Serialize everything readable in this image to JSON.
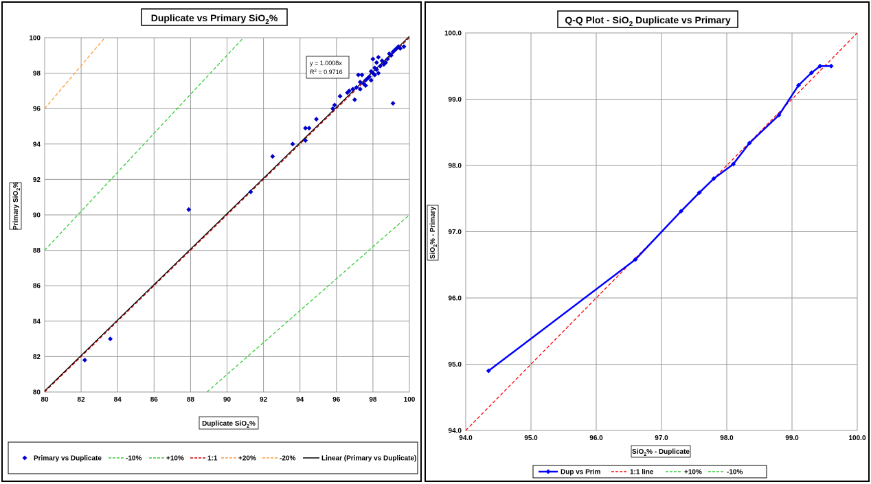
{
  "chart_data": [
    {
      "type": "scatter",
      "title": "Duplicate vs Primary SiO",
      "title_sub": "2",
      "title_suffix": "%",
      "xlabel": "Duplicate SiO",
      "xlabel_sub": "2",
      "xlabel_suffix": "%",
      "ylabel": "Primary SiO",
      "ylabel_sub": "2",
      "ylabel_suffix": "%",
      "xlim": [
        80,
        100
      ],
      "ylim": [
        80,
        100
      ],
      "xticks": [
        "80",
        "82",
        "84",
        "86",
        "88",
        "90",
        "92",
        "94",
        "96",
        "98",
        "100"
      ],
      "yticks": [
        "80",
        "82",
        "84",
        "86",
        "88",
        "90",
        "92",
        "94",
        "96",
        "98",
        "100"
      ],
      "grid": true,
      "trendline_label": "y = 1.0008x",
      "r2_label": "R",
      "r2_sup": "2",
      "r2_value": " = 0.9716",
      "series": [
        {
          "name": "Primary vs Duplicate",
          "color": "#0000cc",
          "marker": "diamond",
          "points": [
            [
              82.2,
              81.8
            ],
            [
              83.6,
              83.0
            ],
            [
              87.9,
              90.3
            ],
            [
              91.3,
              91.3
            ],
            [
              92.5,
              93.3
            ],
            [
              93.6,
              94.0
            ],
            [
              94.3,
              94.2
            ],
            [
              94.3,
              94.9
            ],
            [
              94.5,
              94.9
            ],
            [
              94.9,
              95.4
            ],
            [
              95.8,
              96.0
            ],
            [
              95.9,
              96.2
            ],
            [
              96.2,
              96.7
            ],
            [
              96.6,
              96.9
            ],
            [
              96.7,
              97.0
            ],
            [
              96.9,
              97.1
            ],
            [
              97.0,
              96.5
            ],
            [
              97.1,
              97.2
            ],
            [
              97.2,
              97.9
            ],
            [
              97.3,
              97.1
            ],
            [
              97.3,
              97.5
            ],
            [
              97.4,
              97.9
            ],
            [
              97.5,
              97.4
            ],
            [
              97.6,
              97.6
            ],
            [
              97.7,
              97.7
            ],
            [
              97.8,
              97.8
            ],
            [
              97.9,
              97.6
            ],
            [
              98.0,
              98.0
            ],
            [
              98.0,
              98.8
            ],
            [
              98.1,
              97.9
            ],
            [
              98.2,
              98.2
            ],
            [
              98.2,
              98.6
            ],
            [
              98.3,
              98.0
            ],
            [
              98.4,
              98.4
            ],
            [
              98.5,
              98.7
            ],
            [
              98.6,
              98.5
            ],
            [
              98.8,
              98.8
            ],
            [
              98.9,
              99.1
            ],
            [
              99.0,
              99.0
            ],
            [
              99.1,
              99.2
            ],
            [
              99.1,
              96.3
            ],
            [
              99.2,
              99.3
            ],
            [
              99.3,
              99.4
            ],
            [
              99.4,
              99.5
            ],
            [
              99.5,
              99.4
            ],
            [
              99.7,
              99.5
            ],
            [
              98.1,
              98.3
            ],
            [
              97.9,
              98.1
            ],
            [
              98.3,
              98.9
            ],
            [
              98.7,
              98.6
            ],
            [
              97.6,
              97.3
            ]
          ]
        },
        {
          "name": "-10%",
          "color": "#33cc33",
          "style": "dashed",
          "line": [
            [
              88.9,
              80
            ],
            [
              100,
              90
            ]
          ]
        },
        {
          "name": "+10%",
          "color": "#33cc33",
          "style": "dashed",
          "line": [
            [
              80,
              88
            ],
            [
              90.9,
              100
            ]
          ]
        },
        {
          "name": "1:1",
          "color": "#cc0000",
          "style": "dashed",
          "line": [
            [
              80,
              80
            ],
            [
              100,
              100
            ]
          ]
        },
        {
          "name": "+20%",
          "color": "#ff9933",
          "style": "dashed",
          "line": [
            [
              80,
              96
            ],
            [
              83.3,
              100
            ]
          ]
        },
        {
          "name": "-20%",
          "color": "#ff9933",
          "style": "dashed",
          "line": []
        },
        {
          "name": "Linear (Primary vs Duplicate)",
          "color": "#000000",
          "style": "solid",
          "line": [
            [
              80,
              80.06
            ],
            [
              100,
              100.08
            ]
          ]
        }
      ]
    },
    {
      "type": "line",
      "title": "Q-Q Plot - SiO",
      "title_sub": "2",
      "title_suffix": " Duplicate vs Primary",
      "xlabel": "SiO",
      "xlabel_sub": "2",
      "xlabel_suffix": "% - Duplicate",
      "ylabel": "SiO",
      "ylabel_sub": "2",
      "ylabel_suffix": "% - Primary",
      "xlim": [
        94,
        100
      ],
      "ylim": [
        94,
        100
      ],
      "xticks": [
        "94.0",
        "95.0",
        "96.0",
        "97.0",
        "98.0",
        "99.0",
        "100.0"
      ],
      "yticks": [
        "94.0",
        "95.0",
        "96.0",
        "97.0",
        "98.0",
        "99.0",
        "100.0"
      ],
      "grid": true,
      "series": [
        {
          "name": "Dup vs Prim",
          "color": "#0000ff",
          "style": "solid",
          "marker": "diamond",
          "points": [
            [
              94.35,
              94.9
            ],
            [
              96.6,
              96.58
            ],
            [
              97.3,
              97.31
            ],
            [
              97.58,
              97.59
            ],
            [
              97.8,
              97.8
            ],
            [
              98.1,
              98.02
            ],
            [
              98.35,
              98.34
            ],
            [
              98.8,
              98.76
            ],
            [
              99.1,
              99.21
            ],
            [
              99.3,
              99.4
            ],
            [
              99.43,
              99.5
            ],
            [
              99.6,
              99.5
            ]
          ]
        },
        {
          "name": "1:1 line",
          "color": "#ff0000",
          "style": "dashed",
          "line": [
            [
              94,
              94
            ],
            [
              100,
              100
            ]
          ]
        },
        {
          "name": "+10%",
          "color": "#33cc33",
          "style": "dashed",
          "line": []
        },
        {
          "name": "-10%",
          "color": "#33cc33",
          "style": "dashed",
          "line": []
        }
      ]
    }
  ]
}
